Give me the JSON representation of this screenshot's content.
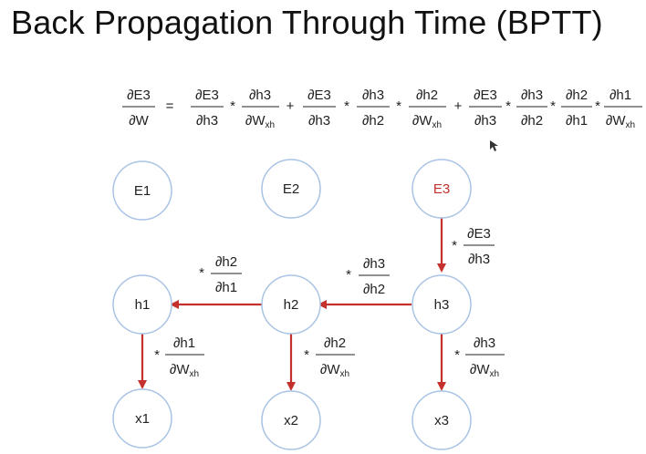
{
  "title": "Back Propagation Through Time (BPTT)",
  "colors": {
    "node_stroke": "#a9c3e4",
    "arrow": "#c4302b",
    "e3_label": "#c4302b"
  },
  "equation": {
    "lhs": {
      "num": "∂E3",
      "den": "∂W"
    },
    "equals": "=",
    "terms": [
      [
        {
          "num": "∂E3",
          "den": "∂h3"
        },
        {
          "num": "∂h3",
          "den": "∂W",
          "sub": "xh"
        }
      ],
      [
        {
          "num": "∂E3",
          "den": "∂h3"
        },
        {
          "num": "∂h3",
          "den": "∂h2"
        },
        {
          "num": "∂h2",
          "den": "∂W",
          "sub": "xh"
        }
      ],
      [
        {
          "num": "∂E3",
          "den": "∂h3"
        },
        {
          "num": "∂h3",
          "den": "∂h2"
        },
        {
          "num": "∂h2",
          "den": "∂h1"
        },
        {
          "num": "∂h1",
          "den": "∂W",
          "sub": "xh"
        }
      ]
    ],
    "plus": "+",
    "times": "*"
  },
  "nodes": {
    "E1": "E1",
    "E2": "E2",
    "E3": "E3",
    "h1": "h1",
    "h2": "h2",
    "h3": "h3",
    "x1": "x1",
    "x2": "x2",
    "x3": "x3"
  },
  "edge_labels": {
    "e3_h3": {
      "times": "*",
      "num": "∂E3",
      "den": "∂h3"
    },
    "h3_h2": {
      "times": "*",
      "num": "∂h3",
      "den": "∂h2"
    },
    "h2_h1": {
      "times": "*",
      "num": "∂h2",
      "den": "∂h1"
    },
    "h1_x1": {
      "times": "*",
      "num": "∂h1",
      "den": "∂W",
      "sub": "xh"
    },
    "h2_x2": {
      "times": "*",
      "num": "∂h2",
      "den": "∂W",
      "sub": "xh"
    },
    "h3_x3": {
      "times": "*",
      "num": "∂h3",
      "den": "∂W",
      "sub": "xh"
    }
  }
}
